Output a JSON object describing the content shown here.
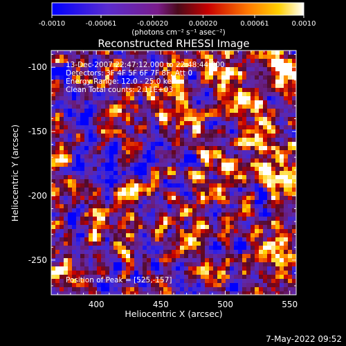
{
  "colorbar": {
    "ticks": [
      "-0.0010",
      "-0.00061",
      "-0.00020",
      "0.00020",
      "0.00061",
      "0.0010"
    ],
    "units": "(photons cm⁻² s⁻¹ asec⁻²)",
    "range": [
      -0.001,
      0.001
    ]
  },
  "chart_data": {
    "type": "heatmap",
    "title": "Reconstructed RHESSI Image",
    "xlabel": "Heliocentric X (arcsec)",
    "ylabel": "Heliocentric Y (arcsec)",
    "xlim": [
      365,
      555
    ],
    "ylim": [
      -277,
      -87
    ],
    "x_ticks": [
      "400",
      "450",
      "500",
      "550"
    ],
    "y_ticks": [
      "-100",
      "-150",
      "-200",
      "-250"
    ],
    "annotations": [
      "13-Dec-2007 22:47:12.000 to 22:48:44.000",
      "Detectors: 3F 4F 5F 6F 7F 8F, Att 0",
      "Energy Range: 12.0 - 25.0 keV",
      "Clean     Total counts: 2.11E+03"
    ],
    "peak_label": "Position of Peak = [525,-157]",
    "peak": [
      525,
      -157
    ],
    "colormap": "blue-purple-red-yellow-white"
  },
  "footer": {
    "date": "7-May-2022 09:52"
  }
}
